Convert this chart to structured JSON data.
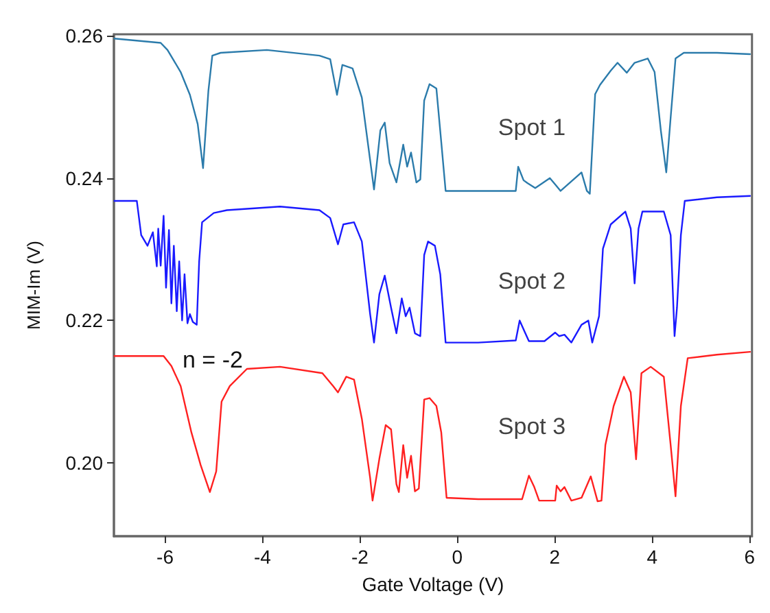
{
  "chart_data": {
    "type": "line",
    "xlabel": "Gate Voltage (V)",
    "ylabel": "MIM-Im (V)",
    "xlim": [
      -7.05,
      6.05
    ],
    "ylim": [
      0.1897,
      0.2602
    ],
    "xticks": [
      -6,
      -4,
      -2,
      0,
      2,
      4,
      6
    ],
    "yticks": [
      {
        "value": 0.2,
        "label": "0.20"
      },
      {
        "value": 0.22,
        "label": "0.22"
      },
      {
        "value": 0.24,
        "label": "0.24"
      },
      {
        "value": 0.26,
        "label": "0.26"
      }
    ],
    "marker": "none",
    "line_style": "solid",
    "series": [
      {
        "name": "Spot 1",
        "color": "#2b7bab",
        "x": [
          -7.04,
          -6.09,
          -5.95,
          -5.68,
          -5.49,
          -5.33,
          -5.22,
          -5.11,
          -5.03,
          -4.86,
          -3.91,
          -2.83,
          -2.61,
          -2.47,
          -2.36,
          -2.15,
          -1.96,
          -1.71,
          -1.58,
          -1.49,
          -1.39,
          -1.25,
          -1.11,
          -1.03,
          -0.95,
          -0.84,
          -0.76,
          -0.68,
          -0.57,
          -0.43,
          -0.33,
          -0.24,
          0.43,
          1.2,
          1.25,
          1.36,
          1.44,
          1.6,
          1.9,
          2.01,
          2.12,
          2.55,
          2.66,
          2.72,
          2.83,
          2.93,
          3.15,
          3.29,
          3.48,
          3.64,
          3.91,
          4.05,
          4.18,
          4.29,
          4.38,
          4.48,
          4.65,
          5.33,
          6.01
        ],
        "values": [
          0.2596,
          0.259,
          0.258,
          0.2549,
          0.2517,
          0.2476,
          0.2414,
          0.2523,
          0.2572,
          0.2576,
          0.258,
          0.2572,
          0.2567,
          0.2517,
          0.2559,
          0.2554,
          0.2513,
          0.2384,
          0.2467,
          0.2478,
          0.2421,
          0.2394,
          0.2447,
          0.2416,
          0.2436,
          0.2394,
          0.2398,
          0.2509,
          0.2532,
          0.2526,
          0.2451,
          0.2382,
          0.2382,
          0.2382,
          0.2416,
          0.2397,
          0.2393,
          0.2386,
          0.24,
          0.2391,
          0.2382,
          0.2408,
          0.2382,
          0.2378,
          0.2518,
          0.2531,
          0.2551,
          0.2562,
          0.2548,
          0.2562,
          0.2568,
          0.2549,
          0.2466,
          0.2408,
          0.2485,
          0.2568,
          0.2576,
          0.2576,
          0.2574
        ]
      },
      {
        "name": "Spot 2",
        "color": "#1a1aff",
        "x": [
          -7.04,
          -6.58,
          -6.49,
          -6.36,
          -6.25,
          -6.17,
          -6.14,
          -6.09,
          -6.03,
          -5.98,
          -5.92,
          -5.87,
          -5.82,
          -5.76,
          -5.71,
          -5.65,
          -5.6,
          -5.54,
          -5.49,
          -5.43,
          -5.35,
          -5.3,
          -5.24,
          -5.0,
          -4.73,
          -3.64,
          -2.83,
          -2.61,
          -2.45,
          -2.34,
          -2.12,
          -1.96,
          -1.79,
          -1.71,
          -1.6,
          -1.49,
          -1.36,
          -1.25,
          -1.14,
          -1.06,
          -0.98,
          -0.87,
          -0.76,
          -0.68,
          -0.6,
          -0.46,
          -0.35,
          -0.24,
          0.43,
          1.2,
          1.28,
          1.39,
          1.47,
          1.79,
          2.01,
          2.09,
          2.2,
          2.34,
          2.55,
          2.69,
          2.77,
          2.91,
          2.99,
          3.15,
          3.45,
          3.56,
          3.64,
          3.72,
          3.8,
          4.24,
          4.38,
          4.46,
          4.51,
          4.59,
          4.67,
          5.33,
          6.01
        ],
        "values": [
          0.2368,
          0.2368,
          0.232,
          0.2305,
          0.2324,
          0.2276,
          0.2329,
          0.2277,
          0.2347,
          0.2246,
          0.2327,
          0.2224,
          0.2305,
          0.2213,
          0.2283,
          0.22,
          0.2265,
          0.2196,
          0.2209,
          0.2198,
          0.2194,
          0.2283,
          0.2338,
          0.2351,
          0.2355,
          0.236,
          0.2355,
          0.2344,
          0.2307,
          0.2335,
          0.2338,
          0.2311,
          0.2209,
          0.2169,
          0.2237,
          0.2263,
          0.2218,
          0.2182,
          0.2231,
          0.2206,
          0.2218,
          0.2182,
          0.2178,
          0.2292,
          0.2311,
          0.2305,
          0.2265,
          0.2169,
          0.2169,
          0.2172,
          0.22,
          0.2183,
          0.2171,
          0.2171,
          0.2183,
          0.2178,
          0.218,
          0.2169,
          0.2194,
          0.22,
          0.2169,
          0.2206,
          0.2301,
          0.2335,
          0.2353,
          0.2329,
          0.2252,
          0.2329,
          0.2353,
          0.2353,
          0.232,
          0.2178,
          0.2218,
          0.232,
          0.2368,
          0.2373,
          0.2375
        ]
      },
      {
        "name": "Spot 3",
        "color": "#ff2020",
        "x": [
          -7.04,
          -6.03,
          -5.87,
          -5.68,
          -5.46,
          -5.27,
          -5.08,
          -4.95,
          -4.84,
          -4.67,
          -4.32,
          -3.64,
          -2.77,
          -2.55,
          -2.45,
          -2.28,
          -2.12,
          -1.96,
          -1.79,
          -1.74,
          -1.6,
          -1.47,
          -1.36,
          -1.25,
          -1.2,
          -1.11,
          -1.03,
          -0.95,
          -0.87,
          -0.79,
          -0.68,
          -0.57,
          -0.43,
          -0.33,
          -0.22,
          0.43,
          1.33,
          1.47,
          1.58,
          1.68,
          2.01,
          2.04,
          2.12,
          2.2,
          2.34,
          2.55,
          2.74,
          2.88,
          2.96,
          3.04,
          3.21,
          3.42,
          3.56,
          3.67,
          3.78,
          3.97,
          4.24,
          4.38,
          4.48,
          4.59,
          4.73,
          5.33,
          6.01
        ],
        "values": [
          0.215,
          0.215,
          0.2136,
          0.2108,
          0.2043,
          0.1997,
          0.1959,
          0.1988,
          0.2086,
          0.2108,
          0.2132,
          0.2135,
          0.2126,
          0.2108,
          0.2099,
          0.2121,
          0.2117,
          0.2062,
          0.1979,
          0.1947,
          0.2006,
          0.2053,
          0.2047,
          0.197,
          0.1959,
          0.2025,
          0.1979,
          0.201,
          0.196,
          0.1964,
          0.2089,
          0.2091,
          0.208,
          0.2043,
          0.1951,
          0.1949,
          0.1949,
          0.1982,
          0.1966,
          0.1947,
          0.1947,
          0.1968,
          0.196,
          0.1966,
          0.1947,
          0.1951,
          0.1981,
          0.1946,
          0.1947,
          0.2025,
          0.208,
          0.2121,
          0.2099,
          0.2005,
          0.2126,
          0.2135,
          0.2121,
          0.2025,
          0.1953,
          0.208,
          0.2147,
          0.2152,
          0.2156
        ]
      }
    ],
    "annotations": [
      "n = -2"
    ]
  }
}
